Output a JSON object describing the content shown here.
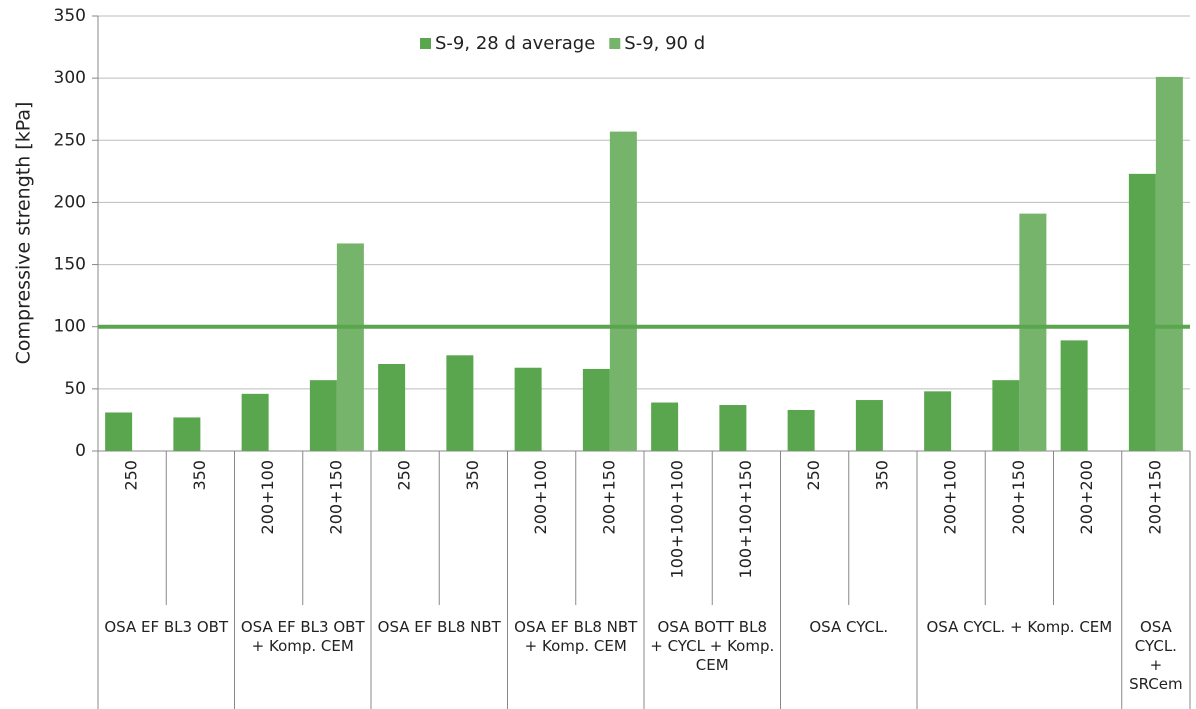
{
  "chart_data": {
    "type": "bar",
    "y_label": "Compressive strength [kPa]",
    "groups": [
      {
        "label": "OSA EF BL3 OBT",
        "categories": [
          "250",
          "350"
        ]
      },
      {
        "label": "OSA EF BL3 OBT + Komp. CEM",
        "categories": [
          "200+100",
          "200+150"
        ]
      },
      {
        "label": "OSA EF BL8 NBT",
        "categories": [
          "250",
          "350"
        ]
      },
      {
        "label": "OSA EF BL8 NBT + Komp. CEM",
        "categories": [
          "200+100",
          "200+150"
        ]
      },
      {
        "label": "OSA BOTT BL8 + CYCL + Komp. CEM",
        "categories": [
          "100+100+100",
          "100+100+150"
        ]
      },
      {
        "label": "OSA CYCL.",
        "categories": [
          "250",
          "350"
        ]
      },
      {
        "label": "OSA CYCL. + Komp. CEM",
        "categories": [
          "200+100",
          "200+150",
          "200+200"
        ]
      },
      {
        "label": "OSA CYCL. + SRCem",
        "categories": [
          "200+150"
        ]
      }
    ],
    "series": [
      {
        "name": "S-9, 28 d average",
        "color": "#5aa64e",
        "values": [
          31,
          27,
          46,
          57,
          70,
          77,
          67,
          66,
          39,
          37,
          33,
          41,
          48,
          57,
          89,
          223
        ]
      },
      {
        "name": "S-9, 90 d",
        "color": "#77b46b",
        "values": [
          null,
          null,
          null,
          167,
          null,
          null,
          null,
          257,
          null,
          null,
          null,
          null,
          null,
          191,
          null,
          301
        ]
      }
    ],
    "reference_line": {
      "value": 100,
      "color": "#5aa64e"
    },
    "ylim": [
      0,
      350
    ],
    "yticks": [
      0,
      50,
      100,
      150,
      200,
      250,
      300,
      350
    ],
    "grid": true
  }
}
